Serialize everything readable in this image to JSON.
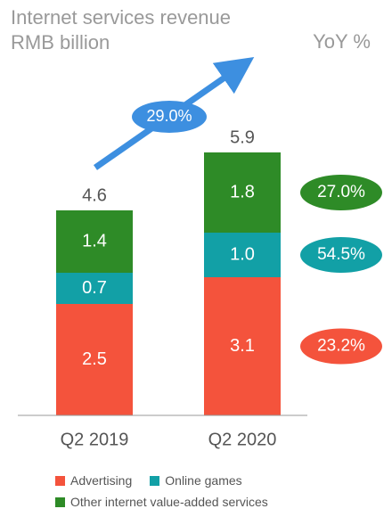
{
  "title_line1": "Internet services revenue",
  "title_line2": "RMB billion",
  "yoy_header": "YoY %",
  "colors": {
    "Advertising": "#f4533c",
    "Online games": "#12a0a6",
    "Other internet value-added services": "#2e8b27",
    "arrow": "#3d8fe0",
    "axis": "#999999"
  },
  "chart_data": {
    "type": "bar",
    "stacked": true,
    "categories": [
      "Q2 2019",
      "Q2 2020"
    ],
    "totals": [
      "4.6",
      "5.9"
    ],
    "series": [
      {
        "name": "Advertising",
        "values": [
          2.5,
          3.1
        ],
        "labels": [
          "2.5",
          "3.1"
        ],
        "yoy": "23.2%"
      },
      {
        "name": "Online games",
        "values": [
          0.7,
          1.0
        ],
        "labels": [
          "0.7",
          "1.0"
        ],
        "yoy": "54.5%"
      },
      {
        "name": "Other internet value-added services",
        "values": [
          1.4,
          1.8
        ],
        "labels": [
          "1.4",
          "1.8"
        ],
        "yoy": "27.0%"
      }
    ],
    "total_growth": "29.0%",
    "legend_position": "bottom"
  }
}
